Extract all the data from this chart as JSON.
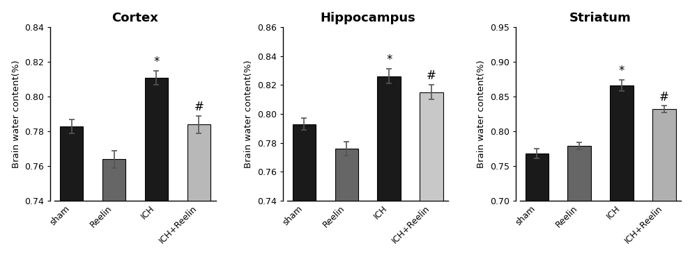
{
  "panels": [
    {
      "title": "Cortex",
      "ylabel": "Brain water content(%)",
      "categories": [
        "sham",
        "Reelin",
        "ICH",
        "ICH+Reelin"
      ],
      "values": [
        0.783,
        0.764,
        0.811,
        0.784
      ],
      "errors": [
        0.004,
        0.005,
        0.004,
        0.005
      ],
      "colors": [
        "#1a1a1a",
        "#666666",
        "#1a1a1a",
        "#b8b8b8"
      ],
      "ylim": [
        0.74,
        0.84
      ],
      "yticks": [
        0.74,
        0.76,
        0.78,
        0.8,
        0.82,
        0.84
      ],
      "sig_stars": [
        null,
        null,
        "*",
        "#"
      ],
      "sig_positions": [
        null,
        null,
        0.8165,
        0.7905
      ]
    },
    {
      "title": "Hippocampus",
      "ylabel": "Brain water content(%)",
      "categories": [
        "sham",
        "Reelin",
        "ICH",
        "ICH+Reelin"
      ],
      "values": [
        0.793,
        0.776,
        0.826,
        0.815
      ],
      "errors": [
        0.004,
        0.005,
        0.005,
        0.005
      ],
      "colors": [
        "#1a1a1a",
        "#666666",
        "#1a1a1a",
        "#c8c8c8"
      ],
      "ylim": [
        0.74,
        0.86
      ],
      "yticks": [
        0.74,
        0.76,
        0.78,
        0.8,
        0.82,
        0.84,
        0.86
      ],
      "sig_stars": [
        null,
        null,
        "*",
        "#"
      ],
      "sig_positions": [
        null,
        null,
        0.833,
        0.822
      ]
    },
    {
      "title": "Striatum",
      "ylabel": "Brain water content(%)",
      "categories": [
        "sham",
        "Reelin",
        "ICH",
        "ICH+Reelin"
      ],
      "values": [
        0.768,
        0.779,
        0.866,
        0.832
      ],
      "errors": [
        0.007,
        0.005,
        0.008,
        0.005
      ],
      "colors": [
        "#1a1a1a",
        "#666666",
        "#1a1a1a",
        "#b0b0b0"
      ],
      "ylim": [
        0.7,
        0.95
      ],
      "yticks": [
        0.7,
        0.75,
        0.8,
        0.85,
        0.9,
        0.95
      ],
      "sig_stars": [
        null,
        null,
        "*",
        "#"
      ],
      "sig_positions": [
        null,
        null,
        0.878,
        0.84
      ]
    }
  ],
  "bar_width": 0.55,
  "title_fontsize": 13,
  "label_fontsize": 9.5,
  "tick_fontsize": 9,
  "sig_fontsize": 12,
  "background_color": "#ffffff",
  "edgecolor": "#000000"
}
